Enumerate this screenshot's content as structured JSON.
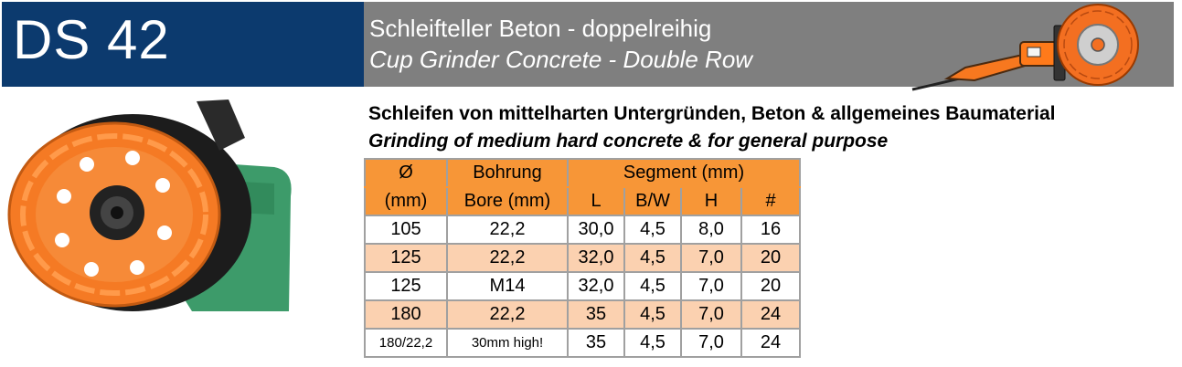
{
  "header": {
    "product_code": "DS 42",
    "title_de": "Schleifteller Beton - doppelreihig",
    "title_en": "Cup Grinder Concrete - Double Row"
  },
  "description": {
    "de": "Schleifen von mittelharten Untergründen, Beton & allgemeines Baumaterial",
    "en": "Grinding of medium hard concrete & for general purpose"
  },
  "table": {
    "headers": {
      "diameter_symbol": "Ø",
      "diameter_unit": "(mm)",
      "bore_de": "Bohrung",
      "bore_en": "Bore (mm)",
      "segment": "Segment (mm)",
      "l": "L",
      "bw": "B/W",
      "h": "H",
      "count": "#"
    },
    "rows": [
      {
        "diameter": "105",
        "bore": "22,2",
        "l": "30,0",
        "bw": "4,5",
        "h": "8,0",
        "count": "16"
      },
      {
        "diameter": "125",
        "bore": "22,2",
        "l": "32,0",
        "bw": "4,5",
        "h": "7,0",
        "count": "20"
      },
      {
        "diameter": "125",
        "bore": "M14",
        "l": "32,0",
        "bw": "4,5",
        "h": "7,0",
        "count": "20"
      },
      {
        "diameter": "180",
        "bore": "22,2",
        "l": "35",
        "bw": "4,5",
        "h": "7,0",
        "count": "24"
      },
      {
        "diameter": "180/22,2",
        "bore": "30mm high!",
        "l": "35",
        "bw": "4,5",
        "h": "7,0",
        "count": "24"
      }
    ]
  },
  "colors": {
    "header_blue": "#0c3a6e",
    "header_gray": "#7f7f7f",
    "table_orange": "#f79637",
    "row_peach": "#fbd1b0"
  }
}
